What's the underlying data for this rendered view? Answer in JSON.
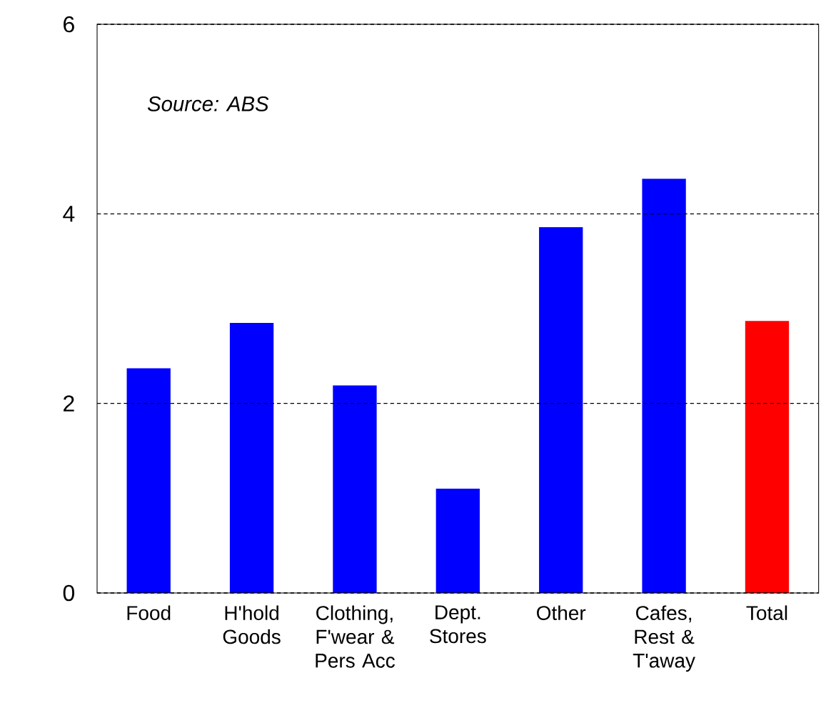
{
  "chart_data": {
    "type": "bar",
    "categories": [
      "Food",
      "H'hold Goods",
      "Clothing, F'wear & Pers Acc",
      "Dept. Stores",
      "Other",
      "Cafes, Rest & T'away",
      "Total"
    ],
    "values": [
      2.37,
      2.85,
      2.19,
      1.1,
      3.86,
      4.37,
      2.87
    ],
    "colors": [
      "#0000ff",
      "#0000ff",
      "#0000ff",
      "#0000ff",
      "#0000ff",
      "#0000ff",
      "#ff0000"
    ],
    "ylim": [
      0,
      6
    ],
    "yticks": [
      0,
      2,
      4,
      6
    ],
    "grid": "y",
    "annotations": [
      "Source: ABS"
    ]
  }
}
